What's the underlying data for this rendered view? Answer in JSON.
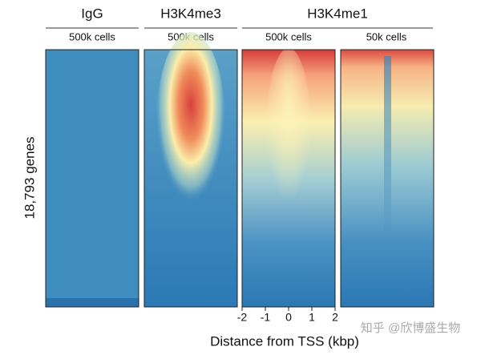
{
  "chart_data": {
    "type": "heatmap",
    "groups": [
      {
        "title": "IgG",
        "panels": [
          {
            "subtitle": "500k cells"
          }
        ]
      },
      {
        "title": "H3K4me3",
        "panels": [
          {
            "subtitle": "500k cells"
          }
        ]
      },
      {
        "title": "H3K4me1",
        "panels": [
          {
            "subtitle": "500k cells"
          },
          {
            "subtitle": "50k cells"
          }
        ]
      }
    ],
    "ylabel": "18,793 genes",
    "xlabel": "Distance from TSS (kbp)",
    "xlim": [
      -2,
      2
    ],
    "xticks": [
      -2,
      -1,
      0,
      1,
      2
    ],
    "watermark": "知乎 @欣博盛生物"
  }
}
